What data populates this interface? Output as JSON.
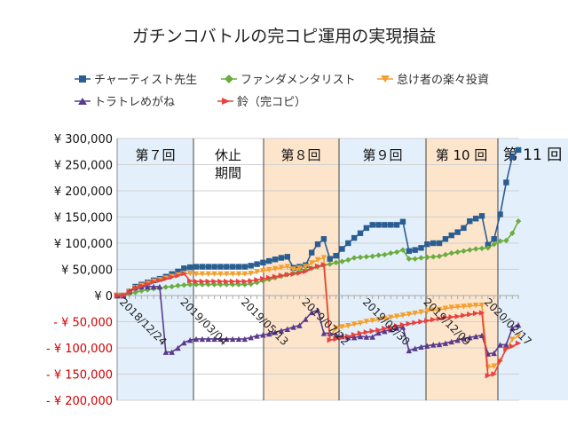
{
  "chart_data": {
    "type": "line",
    "title": "ガチンコバトルの完コピ運用の実現損益",
    "legend_position": "top",
    "grid": true,
    "ylim": [
      -200000,
      300000
    ],
    "y_ticks": [
      {
        "value": 300000,
        "label": "¥ 300,000"
      },
      {
        "value": 250000,
        "label": "¥ 250,000"
      },
      {
        "value": 200000,
        "label": "¥ 200,000"
      },
      {
        "value": 150000,
        "label": "¥ 150,000"
      },
      {
        "value": 100000,
        "label": "¥ 100,000"
      },
      {
        "value": 50000,
        "label": "¥ 50,000"
      },
      {
        "value": 0,
        "label": "¥ 0"
      },
      {
        "value": -50000,
        "label": "- ¥ 50,000"
      },
      {
        "value": -100000,
        "label": "- ¥ 100,000"
      },
      {
        "value": -150000,
        "label": "- ¥ 150,000"
      },
      {
        "value": -200000,
        "label": "- ¥ 200,000"
      }
    ],
    "negative_label_color": "#d00000",
    "x_ticks": [
      {
        "index": 0,
        "label": "2018/12/24"
      },
      {
        "index": 10,
        "label": "2019/03/04"
      },
      {
        "index": 20,
        "label": "2019/05/13"
      },
      {
        "index": 30,
        "label": "2019/07/22"
      },
      {
        "index": 40,
        "label": "2019/09/30"
      },
      {
        "index": 50,
        "label": "2019/12/09"
      },
      {
        "index": 60,
        "label": "2020/02/17"
      }
    ],
    "x_interval": "weekly",
    "sections": [
      {
        "label": "第７回",
        "color": "#e3f0fb"
      },
      {
        "label": "休止\n期間",
        "color": "#ffffff"
      },
      {
        "label": "第８回",
        "color": "#fde5cc"
      },
      {
        "label": "第９回",
        "color": "#e3f0fb"
      },
      {
        "label": "第 10 回",
        "color": "#fde5cc"
      },
      {
        "label": "第 11 回",
        "color": "#e3f0fb"
      }
    ],
    "series": [
      {
        "name": "チャーティスト先生",
        "color": "#2a5d91",
        "marker": "square",
        "values": [
          0,
          0,
          8000,
          17000,
          21000,
          25000,
          29000,
          32000,
          36000,
          41000,
          46000,
          52000,
          54000,
          55000,
          55000,
          55000,
          55000,
          55000,
          55000,
          55000,
          55000,
          55000,
          57000,
          60000,
          63000,
          66000,
          69000,
          72000,
          74000,
          53000,
          55000,
          58000,
          82000,
          98000,
          108000,
          70000,
          76000,
          89000,
          100000,
          110000,
          119000,
          129000,
          135000,
          135000,
          135000,
          135000,
          135000,
          141000,
          85000,
          87000,
          91000,
          98000,
          100000,
          100000,
          108000,
          115000,
          121000,
          129000,
          142000,
          147000,
          152000,
          97000,
          108000,
          155000,
          216000,
          265000,
          278000
        ]
      },
      {
        "name": "ファンダメンタリスト",
        "color": "#6aac3f",
        "marker": "diamond",
        "values": [
          0,
          0,
          3000,
          6000,
          9000,
          11000,
          13000,
          14000,
          16000,
          17000,
          19000,
          20000,
          21000,
          21000,
          21000,
          21000,
          21000,
          21000,
          21000,
          21000,
          21000,
          21000,
          22000,
          25000,
          28000,
          31000,
          34000,
          37000,
          40000,
          43000,
          46000,
          49000,
          52000,
          55000,
          58000,
          60000,
          63000,
          65000,
          68000,
          72000,
          73000,
          74000,
          75000,
          77000,
          78000,
          81000,
          83000,
          87000,
          70000,
          70000,
          72000,
          73000,
          74000,
          75000,
          78000,
          81000,
          83000,
          85000,
          87000,
          89000,
          90000,
          91000,
          98000,
          104000,
          105000,
          119000,
          142000
        ]
      },
      {
        "name": "怠け者の楽々投資",
        "color": "#f4a030",
        "marker": "triangle-down",
        "values": [
          0,
          0,
          8000,
          15000,
          19000,
          23000,
          27000,
          30000,
          33000,
          36000,
          39000,
          42000,
          42000,
          41000,
          41000,
          41000,
          41000,
          41000,
          41000,
          41000,
          41000,
          41000,
          42000,
          45000,
          47000,
          49000,
          51000,
          53000,
          55000,
          50000,
          52000,
          55000,
          62000,
          68000,
          72000,
          -78000,
          -63000,
          -60000,
          -58000,
          -55000,
          -53000,
          -50000,
          -48000,
          -46000,
          -44000,
          -42000,
          -40000,
          -38000,
          -36000,
          -34000,
          -32000,
          -30000,
          -28000,
          -27000,
          -25000,
          -23000,
          -22000,
          -21000,
          -20000,
          -19000,
          -19000,
          -137000,
          -135000,
          -125000,
          -102000,
          -84000,
          -77000
        ]
      },
      {
        "name": "トラトレめがね",
        "color": "#5a3a8c",
        "marker": "triangle-up",
        "values": [
          0,
          0,
          8000,
          15000,
          17000,
          17000,
          17000,
          17000,
          -108000,
          -108000,
          -100000,
          -90000,
          -85000,
          -83000,
          -83000,
          -83000,
          -83000,
          -83000,
          -83000,
          -83000,
          -83000,
          -83000,
          -80000,
          -77000,
          -75000,
          -73000,
          -70000,
          -67000,
          -64000,
          -60000,
          -57000,
          -45000,
          -32000,
          -28000,
          -72000,
          -72000,
          -75000,
          -78000,
          -80000,
          -80000,
          -78000,
          -79000,
          -79000,
          -71000,
          -68000,
          -65000,
          -62000,
          -60000,
          -105000,
          -101000,
          -98000,
          -96000,
          -94000,
          -93000,
          -91000,
          -88000,
          -85000,
          -82000,
          -80000,
          -78000,
          -76000,
          -111000,
          -110000,
          -94000,
          -94000,
          -62000,
          -56000
        ]
      },
      {
        "name": "鈴（完コピ）",
        "color": "#e8413e",
        "marker": "triangle-right",
        "values": [
          0,
          0,
          6000,
          14000,
          18000,
          22000,
          26000,
          29000,
          32000,
          35000,
          38000,
          42000,
          28000,
          27000,
          27000,
          27000,
          27000,
          27000,
          27000,
          27000,
          27000,
          27000,
          28000,
          30000,
          32000,
          34000,
          36000,
          38000,
          40000,
          41000,
          43000,
          46000,
          52000,
          56000,
          59000,
          -85000,
          -83000,
          -80000,
          -78000,
          -75000,
          -72000,
          -70000,
          -68000,
          -66000,
          -63000,
          -61000,
          -58000,
          -56000,
          -54000,
          -52000,
          -50000,
          -48000,
          -46000,
          -44000,
          -42000,
          -41000,
          -40000,
          -38000,
          -36000,
          -34000,
          -33000,
          -153000,
          -150000,
          -125000,
          -102000,
          -97000,
          -91000
        ]
      }
    ]
  }
}
